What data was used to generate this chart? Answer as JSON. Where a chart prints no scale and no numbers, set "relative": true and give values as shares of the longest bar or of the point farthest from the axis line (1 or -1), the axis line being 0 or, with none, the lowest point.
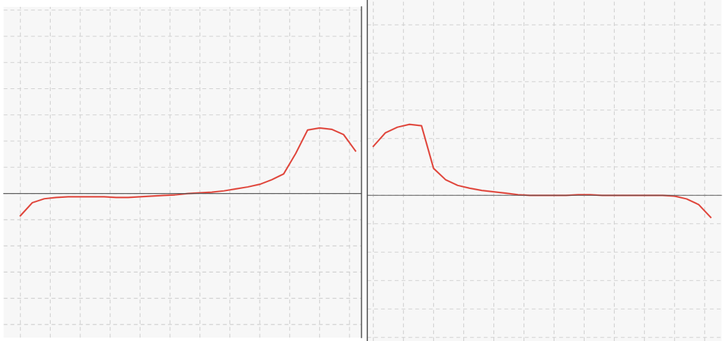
{
  "chart_data": [
    {
      "type": "line",
      "relative": true,
      "grid": true,
      "tick_labels": false,
      "categories": [
        null,
        null,
        null,
        null,
        null,
        null,
        null,
        null,
        null,
        null,
        null,
        null,
        null,
        null,
        null,
        null,
        null,
        null,
        null,
        null,
        null,
        null,
        null,
        null,
        null,
        null,
        null,
        null,
        null
      ],
      "series": [
        {
          "color": "#e0483e",
          "values": [
            -0.34,
            -0.14,
            -0.08,
            -0.06,
            -0.05,
            -0.05,
            -0.05,
            -0.05,
            -0.06,
            -0.06,
            -0.05,
            -0.04,
            -0.03,
            -0.02,
            0,
            0.01,
            0.02,
            0.04,
            0.07,
            0.1,
            0.14,
            0.21,
            0.3,
            0.61,
            0.97,
            1,
            0.98,
            0.9,
            0.65
          ]
        }
      ]
    },
    {
      "type": "line",
      "relative": true,
      "grid": true,
      "tick_labels": false,
      "categories": [
        null,
        null,
        null,
        null,
        null,
        null,
        null,
        null,
        null,
        null,
        null,
        null,
        null,
        null,
        null,
        null,
        null,
        null,
        null,
        null,
        null,
        null,
        null,
        null,
        null,
        null,
        null,
        null,
        null
      ],
      "series": [
        {
          "color": "#e0483e",
          "values": [
            0.69,
            0.88,
            0.96,
            1,
            0.98,
            0.38,
            0.22,
            0.14,
            0.1,
            0.07,
            0.05,
            0.03,
            0.01,
            0,
            0,
            0,
            0,
            0.01,
            0.01,
            0,
            0,
            0,
            0,
            0,
            0,
            -0.01,
            -0.05,
            -0.13,
            -0.31
          ]
        }
      ]
    }
  ]
}
